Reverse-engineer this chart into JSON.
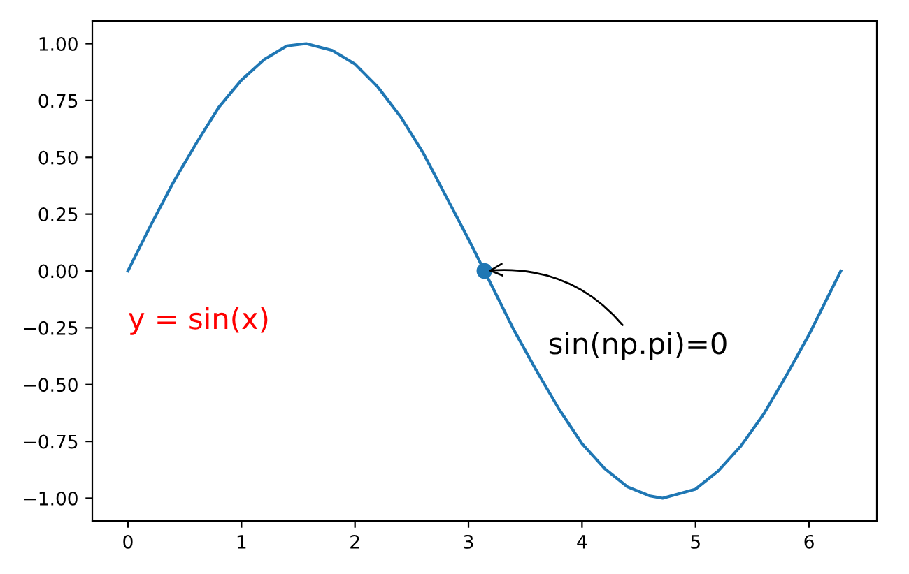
{
  "chart_data": {
    "type": "line",
    "xlim": [
      -0.314,
      6.597
    ],
    "ylim": [
      -1.1,
      1.1
    ],
    "xticks": [
      0,
      1,
      2,
      3,
      4,
      5,
      6
    ],
    "yticks": [
      {
        "value": -1,
        "label": "−1.00"
      },
      {
        "value": -0.75,
        "label": "−0.75"
      },
      {
        "value": -0.5,
        "label": "−0.50"
      },
      {
        "value": -0.25,
        "label": "−0.25"
      },
      {
        "value": 0,
        "label": "0.00"
      },
      {
        "value": 0.25,
        "label": "0.25"
      },
      {
        "value": 0.5,
        "label": "0.50"
      },
      {
        "value": 0.75,
        "label": "0.75"
      },
      {
        "value": 1,
        "label": "1.00"
      }
    ],
    "grid": false,
    "series": [
      {
        "color": "#1f77b4",
        "x": [
          0,
          0.2,
          0.4,
          0.6,
          0.8,
          1.0,
          1.2,
          1.4,
          1.57,
          1.8,
          2.0,
          2.2,
          2.4,
          2.6,
          2.8,
          3.0,
          3.14,
          3.4,
          3.6,
          3.8,
          4.0,
          4.2,
          4.4,
          4.6,
          4.71,
          5.0,
          5.2,
          5.4,
          5.6,
          5.8,
          6.0,
          6.2,
          6.28
        ],
        "values": [
          0,
          0.2,
          0.39,
          0.56,
          0.72,
          0.84,
          0.93,
          0.99,
          1.0,
          0.97,
          0.91,
          0.81,
          0.68,
          0.52,
          0.33,
          0.14,
          0,
          -0.26,
          -0.44,
          -0.61,
          -0.76,
          -0.87,
          -0.95,
          -0.99,
          -1.0,
          -0.96,
          -0.88,
          -0.77,
          -0.63,
          -0.46,
          -0.28,
          -0.08,
          0
        ]
      },
      {
        "type": "scatter",
        "color": "#1f77b4",
        "marker": "circle",
        "x": [
          3.14
        ],
        "values": [
          0
        ]
      }
    ],
    "annotations": [
      "y = sin(x)",
      {
        "text": "sin(np.pi)=0",
        "x": 3.14,
        "y": 0
      }
    ]
  }
}
